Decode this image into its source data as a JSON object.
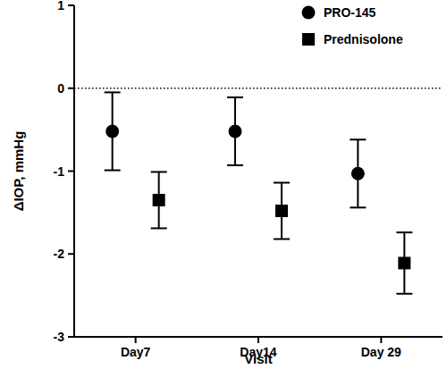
{
  "chart_data": {
    "type": "scatter",
    "x_label": "Visit",
    "y_label": "ΔIOP, mmHg",
    "categories": [
      "Day7",
      "Day14",
      "Day 29"
    ],
    "series": [
      {
        "name": "PRO-145",
        "color": "#000000",
        "marker": "circle",
        "values": [
          -0.52,
          -0.52,
          -1.03
        ],
        "errors": [
          0.47,
          0.41,
          0.41
        ]
      },
      {
        "name": "Prednisolone",
        "color": "#000000",
        "marker": "square",
        "values": [
          -1.35,
          -1.48,
          -2.11
        ],
        "errors": [
          0.34,
          0.34,
          0.37
        ]
      }
    ],
    "ylim": [
      -3,
      1
    ],
    "yticks": [
      -3,
      -2,
      -1,
      0,
      1
    ],
    "reference_line": 0,
    "legend": "top-right"
  }
}
